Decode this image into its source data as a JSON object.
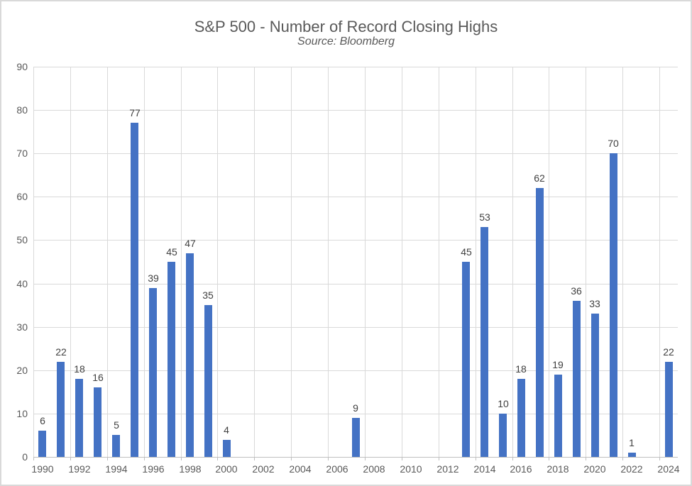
{
  "chart_data": {
    "type": "bar",
    "title": "S&P 500 - Number of Record Closing Highs",
    "subtitle": "Source: Bloomberg",
    "xlabel": "",
    "ylabel": "",
    "ylim": [
      0,
      90
    ],
    "y_ticks": [
      0,
      10,
      20,
      30,
      40,
      50,
      60,
      70,
      80,
      90
    ],
    "x_tick_labels": [
      "1990",
      "1992",
      "1994",
      "1996",
      "1998",
      "2000",
      "2002",
      "2004",
      "2006",
      "2008",
      "2010",
      "2012",
      "2014",
      "2016",
      "2018",
      "2020",
      "2022",
      "2024"
    ],
    "categories": [
      1990,
      1991,
      1992,
      1993,
      1994,
      1995,
      1996,
      1997,
      1998,
      1999,
      2000,
      2001,
      2002,
      2003,
      2004,
      2005,
      2006,
      2007,
      2008,
      2009,
      2010,
      2011,
      2012,
      2013,
      2014,
      2015,
      2016,
      2017,
      2018,
      2019,
      2020,
      2021,
      2022,
      2023,
      2024
    ],
    "values": [
      6,
      22,
      18,
      16,
      5,
      77,
      39,
      45,
      47,
      35,
      4,
      0,
      0,
      0,
      0,
      0,
      0,
      9,
      0,
      0,
      0,
      0,
      0,
      45,
      53,
      10,
      18,
      62,
      19,
      36,
      33,
      70,
      1,
      0,
      22
    ],
    "grid": true,
    "legend": false,
    "data_labels": true,
    "colors": {
      "bar": "#4472C4",
      "gridline": "#D9D9D9",
      "axis_line": "#BFBFBF",
      "axis_text": "#595959",
      "title_text": "#595959",
      "data_label_text": "#404040",
      "border": "#D9D9D9",
      "background": "#FFFFFF"
    }
  }
}
